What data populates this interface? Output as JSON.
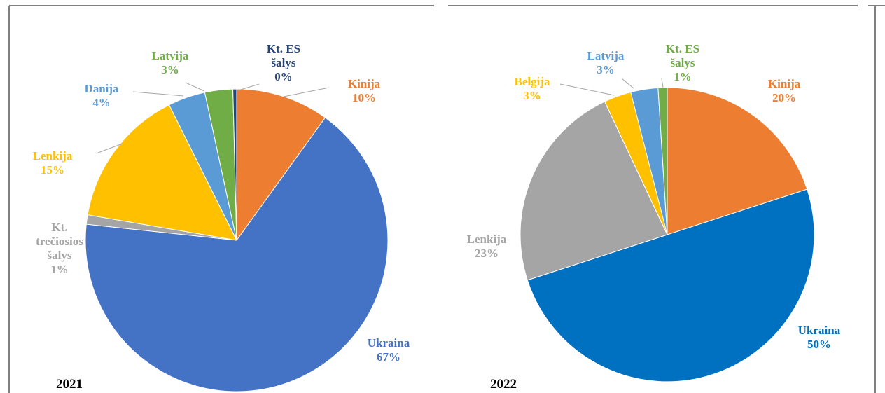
{
  "chart_data": [
    {
      "type": "pie",
      "title": "2021",
      "categories": [
        "Kinija",
        "Ukraina",
        "Kt. trečiosios šalys",
        "Lenkija",
        "Danija",
        "Latvija",
        "Kt. ES šalys"
      ],
      "values": [
        10,
        67,
        1,
        15,
        4,
        3,
        0.4
      ],
      "value_labels": [
        "10%",
        "67%",
        "1%",
        "15%",
        "4%",
        "3%",
        "0%"
      ],
      "colors": [
        "#ed7d31",
        "#4472c4",
        "#a5a5a5",
        "#ffc000",
        "#5b9bd5",
        "#70ad47",
        "#264478"
      ]
    },
    {
      "type": "pie",
      "title": "2022",
      "categories": [
        "Kinija",
        "Ukraina",
        "Lenkija",
        "Belgija",
        "Latvija",
        "Kt. ES šalys"
      ],
      "values": [
        20,
        50,
        23,
        3,
        3,
        1
      ],
      "value_labels": [
        "20%",
        "50%",
        "23%",
        "3%",
        "3%",
        "1%"
      ],
      "colors": [
        "#ed7d31",
        "#0070c0",
        "#a5a5a5",
        "#ffc000",
        "#5b9bd5",
        "#70ad47"
      ]
    }
  ]
}
